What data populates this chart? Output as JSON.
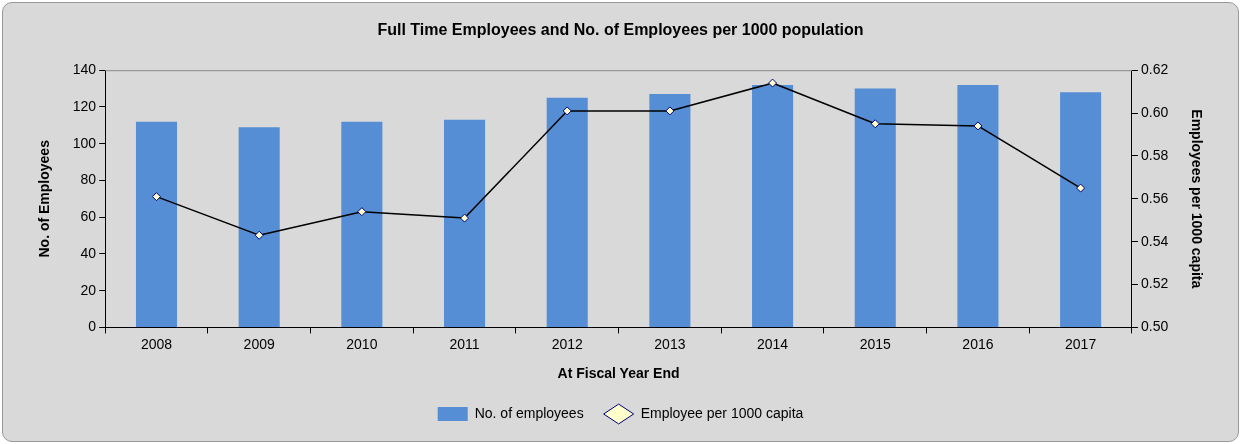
{
  "chart_data": {
    "type": "bar",
    "title": "Full Time Employees and No. of Employees per 1000 population",
    "xlabel": "At Fiscal Year End",
    "ylabel": "No. of Employees",
    "y2label": "Employees per 1000 capita",
    "categories": [
      "2008",
      "2009",
      "2010",
      "2011",
      "2012",
      "2013",
      "2014",
      "2015",
      "2016",
      "2017"
    ],
    "series": [
      {
        "name": "No. of employees",
        "color": "#558ed5",
        "values": [
          112,
          109,
          112,
          113,
          125,
          127,
          132,
          130,
          132,
          128
        ]
      },
      {
        "name": "Employee per 1000 capita",
        "type": "line",
        "axis": "y2",
        "color": "#000000",
        "values": [
          0.561,
          0.543,
          0.554,
          0.551,
          0.601,
          0.601,
          0.614,
          0.595,
          0.594,
          0.565
        ]
      }
    ],
    "ylim": [
      0,
      140
    ],
    "yticks": [
      0,
      20,
      40,
      60,
      80,
      100,
      120,
      140
    ],
    "y2lim": [
      0.5,
      0.62
    ],
    "y2ticks": [
      {
        "value": 0.5,
        "label": "0.50"
      },
      {
        "value": 0.52,
        "label": "0.52"
      },
      {
        "value": 0.54,
        "label": "0.54"
      },
      {
        "value": 0.56,
        "label": "0.56"
      },
      {
        "value": 0.58,
        "label": "0.58"
      },
      {
        "value": 0.6,
        "label": "0.60"
      },
      {
        "value": 0.62,
        "label": "0.62"
      }
    ],
    "grid": false,
    "legend": "bottom",
    "marker": "diamond",
    "line_style": "solid"
  }
}
